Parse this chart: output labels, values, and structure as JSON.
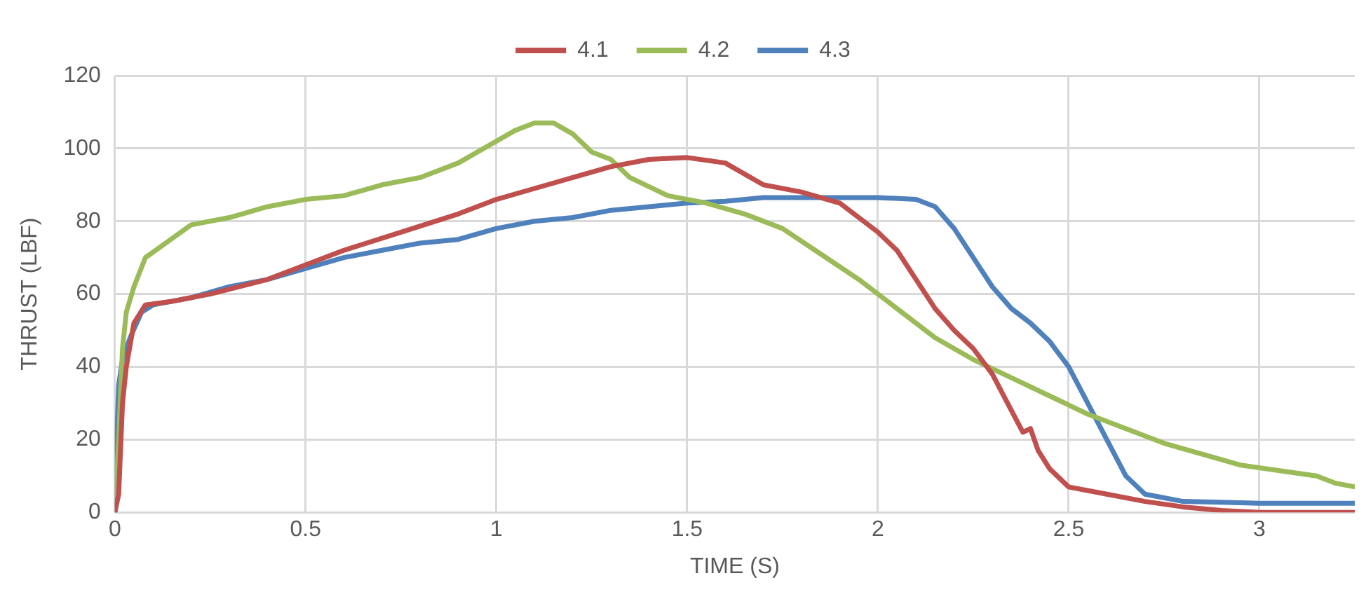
{
  "chart_data": {
    "type": "line",
    "xlabel": "TIME (S)",
    "ylabel": "THRUST (LBF)",
    "xlim": [
      0,
      3.25
    ],
    "xticks": [
      0,
      0.5,
      1,
      1.5,
      2,
      2.5,
      3
    ],
    "ylim": [
      0,
      120
    ],
    "yticks": [
      0,
      20,
      40,
      60,
      80,
      100,
      120
    ],
    "grid": true,
    "legend": "top",
    "marker": "none",
    "line_style": "solid",
    "series": [
      {
        "name": "4.1",
        "color": "#c0504d",
        "x": [
          0,
          0.01,
          0.02,
          0.03,
          0.05,
          0.08,
          0.15,
          0.25,
          0.4,
          0.5,
          0.6,
          0.75,
          0.9,
          1.0,
          1.1,
          1.2,
          1.3,
          1.4,
          1.5,
          1.6,
          1.7,
          1.8,
          1.9,
          2.0,
          2.05,
          2.1,
          2.15,
          2.2,
          2.25,
          2.3,
          2.35,
          2.38,
          2.4,
          2.42,
          2.45,
          2.5,
          2.6,
          2.7,
          2.8,
          2.9,
          3.0,
          3.25
        ],
        "values": [
          0,
          5,
          30,
          40,
          52,
          57,
          58,
          60,
          64,
          68,
          72,
          77,
          82,
          86,
          89,
          92,
          95,
          97,
          97.5,
          96,
          90,
          88,
          85,
          77,
          72,
          64,
          56,
          50,
          45,
          38,
          28,
          22,
          23,
          17,
          12,
          7,
          5,
          3,
          1.5,
          0.5,
          0,
          0
        ]
      },
      {
        "name": "4.2",
        "color": "#9bbb59",
        "x": [
          0,
          0.01,
          0.02,
          0.03,
          0.05,
          0.08,
          0.12,
          0.2,
          0.3,
          0.4,
          0.5,
          0.6,
          0.7,
          0.8,
          0.9,
          1.0,
          1.05,
          1.1,
          1.15,
          1.2,
          1.25,
          1.3,
          1.35,
          1.45,
          1.55,
          1.65,
          1.75,
          1.85,
          1.95,
          2.05,
          2.15,
          2.25,
          2.35,
          2.45,
          2.55,
          2.65,
          2.75,
          2.85,
          2.95,
          3.05,
          3.15,
          3.2,
          3.25
        ],
        "values": [
          0,
          20,
          45,
          55,
          62,
          70,
          73,
          79,
          81,
          84,
          86,
          87,
          90,
          92,
          96,
          102,
          105,
          107,
          107,
          104,
          99,
          97,
          92,
          87,
          85,
          82,
          78,
          71,
          64,
          56,
          48,
          42,
          37,
          32,
          27,
          23,
          19,
          16,
          13,
          11.5,
          10,
          8,
          7
        ]
      },
      {
        "name": "4.3",
        "color": "#4f81bd",
        "x": [
          0,
          0.005,
          0.01,
          0.02,
          0.04,
          0.07,
          0.1,
          0.2,
          0.3,
          0.4,
          0.5,
          0.6,
          0.7,
          0.8,
          0.9,
          1.0,
          1.1,
          1.2,
          1.3,
          1.4,
          1.5,
          1.6,
          1.7,
          1.8,
          1.9,
          2.0,
          2.1,
          2.15,
          2.2,
          2.25,
          2.3,
          2.35,
          2.4,
          2.45,
          2.5,
          2.55,
          2.6,
          2.65,
          2.7,
          2.8,
          3.0,
          3.25
        ],
        "values": [
          0,
          20,
          35,
          42,
          48,
          55,
          57,
          59,
          62,
          64,
          67,
          70,
          72,
          74,
          75,
          78,
          80,
          81,
          83,
          84,
          85,
          85.5,
          86.5,
          86.5,
          86.5,
          86.5,
          86,
          84,
          78,
          70,
          62,
          56,
          52,
          47,
          40,
          30,
          20,
          10,
          5,
          3,
          2.5,
          2.5
        ]
      }
    ]
  }
}
